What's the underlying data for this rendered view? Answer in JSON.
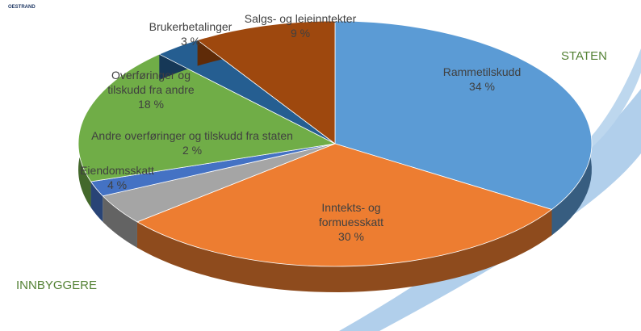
{
  "logo": "OESTRAND",
  "group_labels": [
    "STATEN",
    "INNBYGGERE"
  ],
  "chart_data": {
    "type": "pie",
    "categories": [
      "Rammetilskudd",
      "Inntekts- og formuesskatt",
      "Eiendomsskatt",
      "Andre overføringer og tilskudd fra staten",
      "Overføringer og tilskudd fra andre",
      "Brukerbetalinger",
      "Salgs- og leieinntekter"
    ],
    "values": [
      34,
      30,
      4,
      2,
      18,
      3,
      9
    ],
    "value_labels": [
      "34 %",
      "30 %",
      "4 %",
      "2 %",
      "18 %",
      "3 %",
      "9 %"
    ],
    "colors": [
      "#5b9bd5",
      "#ed7d31",
      "#a5a5a5",
      "#4472c4",
      "#70ad47",
      "#255e91",
      "#9e480e"
    ]
  }
}
